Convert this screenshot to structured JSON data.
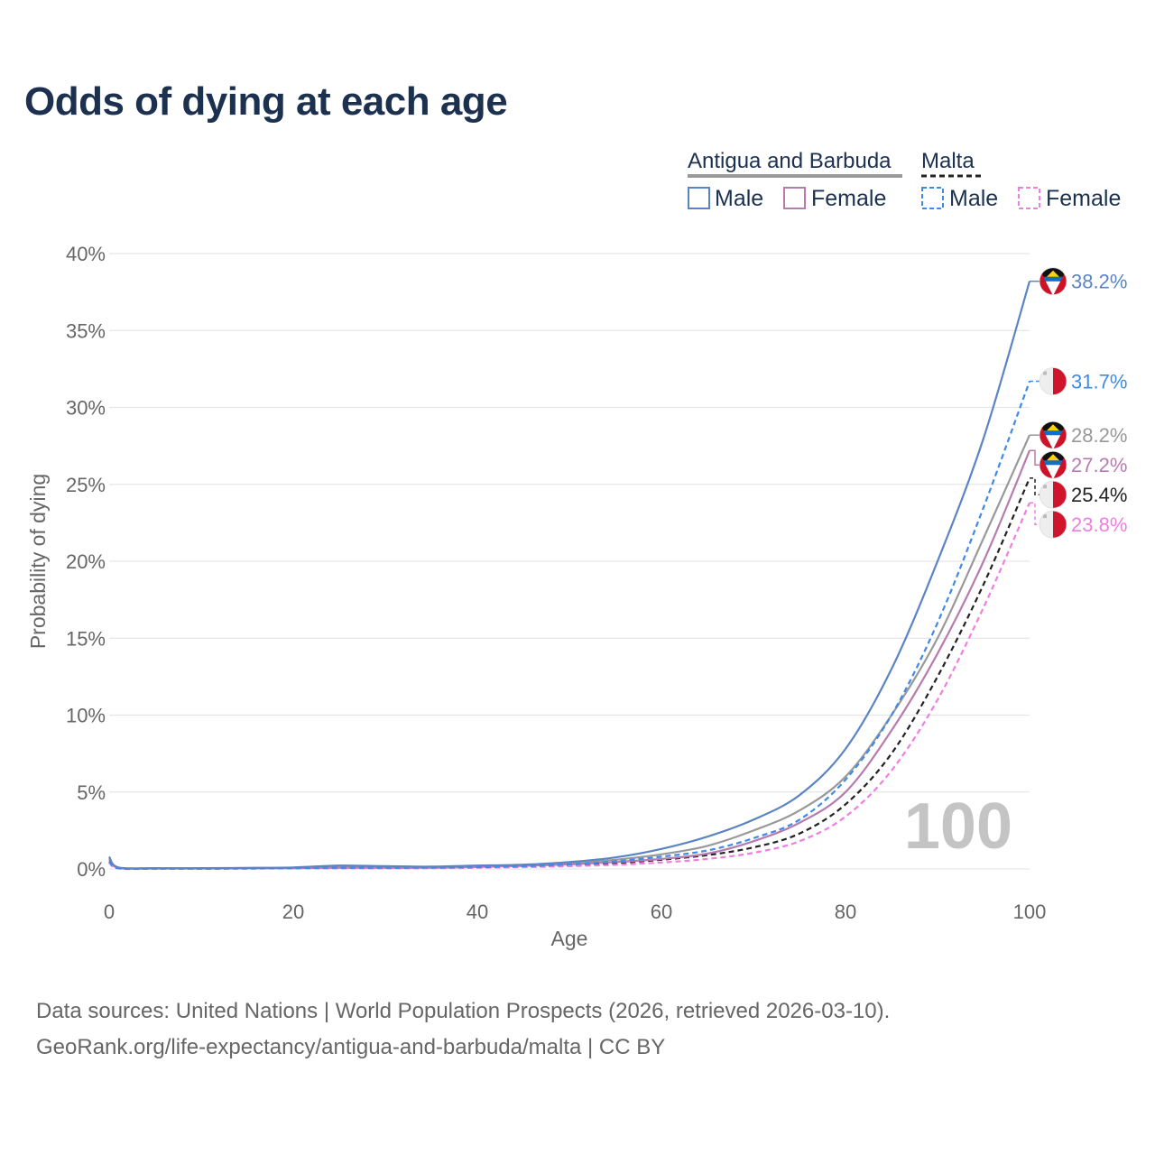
{
  "title": "Odds of dying at each age",
  "source_line1": "Data sources: United Nations | World Population Prospects (2026, retrieved 2026-03-10).",
  "source_line2": "GeoRank.org/life-expectancy/antigua-and-barbuda/malta | CC BY",
  "legend": {
    "group_a": "Antigua and Barbuda",
    "group_b": "Malta",
    "a_male": "Male",
    "a_female": "Female",
    "b_male": "Male",
    "b_female": "Female"
  },
  "age_watermark": "100",
  "colors": {
    "ab_male": "#5b84c4",
    "ab_female": "#b77bb0",
    "ab_total": "#999999",
    "mt_male": "#3f8ae6",
    "mt_female": "#f07ee2",
    "mt_total": "#222222"
  },
  "chart_data": {
    "type": "line",
    "title": "Odds of dying at each age",
    "xlabel": "Age",
    "ylabel": "Probability of dying",
    "xlim": [
      0,
      100
    ],
    "ylim": [
      0,
      40
    ],
    "x_ticks": [
      "0",
      "20",
      "40",
      "60",
      "80",
      "100"
    ],
    "y_ticks": [
      "0%",
      "5%",
      "10%",
      "15%",
      "20%",
      "25%",
      "30%",
      "35%",
      "40%"
    ],
    "x": [
      0,
      1,
      5,
      10,
      15,
      20,
      25,
      30,
      35,
      40,
      45,
      50,
      55,
      60,
      65,
      70,
      75,
      80,
      85,
      90,
      95,
      100
    ],
    "series": [
      {
        "key": "ab_male",
        "name": "Antigua and Barbuda Male",
        "dashed": false,
        "flag": "antigua",
        "values": [
          0.8,
          0.1,
          0.05,
          0.05,
          0.07,
          0.1,
          0.22,
          0.18,
          0.15,
          0.22,
          0.28,
          0.45,
          0.75,
          1.3,
          2.1,
          3.2,
          4.8,
          7.8,
          13.0,
          20.0,
          28.0,
          38.2
        ],
        "end_label": "38.2%"
      },
      {
        "key": "mt_male",
        "name": "Malta Male",
        "dashed": true,
        "flag": "malta",
        "values": [
          0.5,
          0.05,
          0.02,
          0.02,
          0.04,
          0.06,
          0.08,
          0.08,
          0.09,
          0.12,
          0.18,
          0.3,
          0.5,
          0.8,
          1.2,
          2.0,
          3.2,
          5.8,
          10.0,
          16.0,
          23.5,
          31.7
        ],
        "end_label": "31.7%"
      },
      {
        "key": "ab_total",
        "name": "Antigua and Barbuda Total",
        "dashed": false,
        "flag": "antigua",
        "values": [
          0.7,
          0.08,
          0.04,
          0.04,
          0.06,
          0.08,
          0.15,
          0.12,
          0.12,
          0.18,
          0.25,
          0.38,
          0.6,
          0.95,
          1.5,
          2.5,
          3.8,
          6.0,
          10.0,
          15.0,
          21.5,
          28.2
        ],
        "end_label": "28.2%"
      },
      {
        "key": "ab_female",
        "name": "Antigua and Barbuda Female",
        "dashed": false,
        "flag": "antigua",
        "values": [
          0.6,
          0.07,
          0.03,
          0.03,
          0.04,
          0.05,
          0.08,
          0.07,
          0.08,
          0.13,
          0.2,
          0.3,
          0.45,
          0.65,
          1.0,
          1.8,
          3.0,
          5.0,
          9.0,
          14.0,
          20.0,
          27.2
        ],
        "end_label": "27.2%"
      },
      {
        "key": "mt_total",
        "name": "Malta Total",
        "dashed": true,
        "flag": "malta",
        "values": [
          0.45,
          0.04,
          0.02,
          0.02,
          0.03,
          0.05,
          0.06,
          0.06,
          0.07,
          0.1,
          0.15,
          0.24,
          0.38,
          0.6,
          0.9,
          1.4,
          2.3,
          4.2,
          7.5,
          12.5,
          18.5,
          25.4
        ],
        "end_label": "25.4%"
      },
      {
        "key": "mt_female",
        "name": "Malta Female",
        "dashed": true,
        "flag": "malta",
        "values": [
          0.4,
          0.03,
          0.01,
          0.01,
          0.02,
          0.03,
          0.04,
          0.04,
          0.05,
          0.08,
          0.12,
          0.18,
          0.27,
          0.42,
          0.65,
          1.05,
          1.8,
          3.4,
          6.4,
          11.0,
          17.0,
          23.8
        ],
        "end_label": "23.8%"
      }
    ]
  }
}
